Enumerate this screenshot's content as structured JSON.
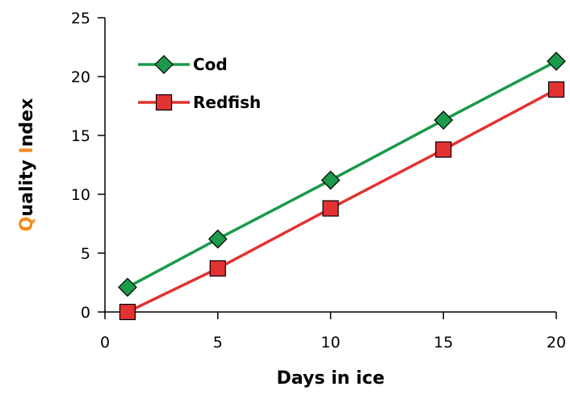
{
  "chart_data": {
    "type": "line",
    "title": "",
    "xlabel": "Days in ice",
    "ylabel": {
      "parts": [
        {
          "text": "Q",
          "color": "#f28a1e"
        },
        {
          "text": "uality ",
          "color": "#000000"
        },
        {
          "text": "I",
          "color": "#f28a1e"
        },
        {
          "text": "ndex",
          "color": "#000000"
        }
      ]
    },
    "xlim": [
      0,
      20
    ],
    "ylim": [
      0,
      25
    ],
    "x_ticks": [
      0,
      5,
      10,
      15,
      20
    ],
    "y_ticks": [
      0,
      5,
      10,
      15,
      20,
      25
    ],
    "grid": false,
    "legend_position": "top-left",
    "series": [
      {
        "name": "Cod",
        "color": "#1a9a4a",
        "marker": "diamond",
        "x": [
          1,
          5,
          10,
          15,
          20
        ],
        "y": [
          2.1,
          6.2,
          11.2,
          16.3,
          21.3
        ]
      },
      {
        "name": "Redfish",
        "color": "#e23232",
        "marker": "square",
        "x": [
          1,
          5,
          10,
          15,
          20
        ],
        "y": [
          0,
          3.7,
          8.8,
          13.8,
          18.9
        ]
      }
    ]
  }
}
